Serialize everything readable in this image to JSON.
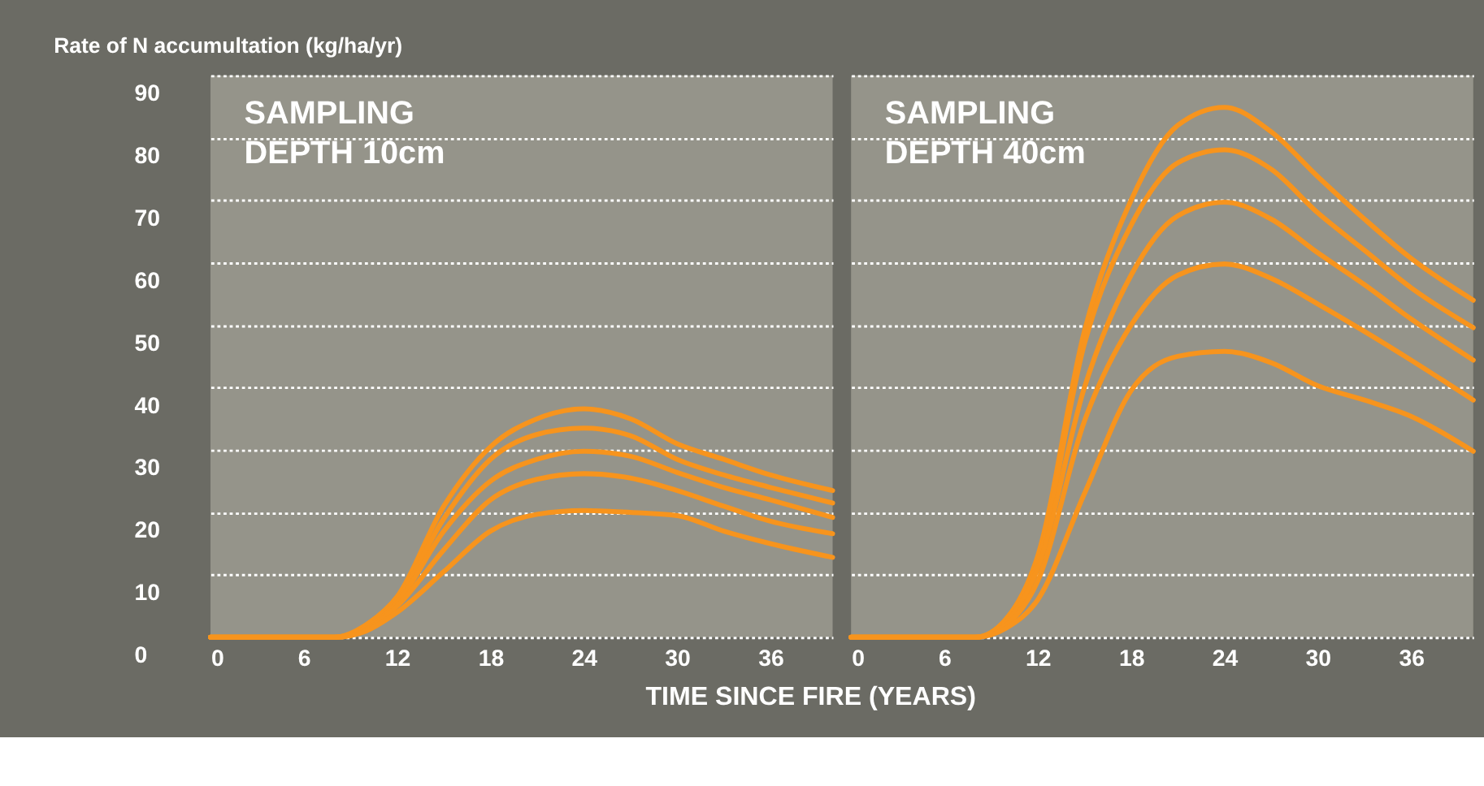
{
  "chart_data": [
    {
      "type": "line",
      "title": "SAMPLING\nDEPTH 10cm",
      "ylabel": "Rate of N accumultation (kg/ha/yr)",
      "x": [
        0,
        8,
        10,
        12,
        15,
        18,
        21,
        24,
        27,
        30,
        33,
        36,
        40
      ],
      "series": [
        {
          "color": "#f7941d",
          "values": [
            0,
            0,
            2,
            6.5,
            21,
            30.5,
            35,
            36.6,
            35,
            31,
            28.5,
            26,
            23.5
          ]
        },
        {
          "color": "#f7941d",
          "values": [
            0,
            0,
            1.8,
            6,
            19,
            28.5,
            32.5,
            33.5,
            32.3,
            28.5,
            26,
            24,
            21.5
          ]
        },
        {
          "color": "#f7941d",
          "values": [
            0,
            0,
            1.5,
            5.5,
            17,
            25,
            28.5,
            29.8,
            29,
            26.4,
            24,
            22,
            19.2
          ]
        },
        {
          "color": "#f7941d",
          "values": [
            0,
            0,
            1.2,
            5,
            14,
            22,
            25.3,
            26.2,
            25.5,
            23.5,
            21,
            18.6,
            16.6
          ]
        },
        {
          "color": "#f7941d",
          "values": [
            0,
            0,
            1,
            4,
            10.5,
            17,
            19.7,
            20.3,
            20,
            19.5,
            17,
            15,
            12.8
          ]
        }
      ],
      "xlim": [
        0,
        40
      ],
      "xticks": [
        0,
        6,
        12,
        18,
        24,
        30,
        36
      ],
      "ylim": [
        0,
        90
      ],
      "yticks": [
        0,
        10,
        20,
        30,
        40,
        50,
        60,
        70,
        80,
        90
      ],
      "grid": "y",
      "legend": false,
      "marker": "none",
      "line_style": "solid"
    },
    {
      "type": "line",
      "title": "SAMPLING\nDEPTH 40cm",
      "xlabel": "TIME SINCE FIRE (YEARS)",
      "x": [
        0,
        8,
        10,
        12,
        15,
        18,
        21,
        24,
        27,
        30,
        33,
        36,
        40
      ],
      "series": [
        {
          "color": "#f7941d",
          "values": [
            0,
            0,
            3,
            13,
            49,
            70,
            82,
            84.9,
            81,
            73.8,
            67,
            60.7,
            54
          ]
        },
        {
          "color": "#f7941d",
          "values": [
            0,
            0,
            3,
            12,
            47,
            66,
            76,
            78.1,
            75,
            68,
            62,
            56,
            49.6
          ]
        },
        {
          "color": "#f7941d",
          "values": [
            0,
            0,
            2.5,
            11,
            40,
            58,
            67.5,
            69.7,
            67,
            61.6,
            56.5,
            51,
            44.4
          ]
        },
        {
          "color": "#f7941d",
          "values": [
            0,
            0,
            2,
            9,
            34.6,
            50,
            58,
            59.8,
            57.5,
            53.4,
            49,
            44.4,
            38
          ]
        },
        {
          "color": "#f7941d",
          "values": [
            0,
            0,
            1.5,
            6,
            23,
            39.5,
            45,
            45.8,
            44,
            40.3,
            38,
            35.4,
            29.8
          ]
        }
      ],
      "xlim": [
        0,
        40
      ],
      "xticks": [
        0,
        6,
        12,
        18,
        24,
        30,
        36
      ],
      "ylim": [
        0,
        90
      ],
      "yticks": [
        0,
        10,
        20,
        30,
        40,
        50,
        60,
        70,
        80,
        90
      ],
      "tick_labels": "x",
      "grid": "y",
      "legend": false,
      "marker": "none",
      "line_style": "solid"
    }
  ]
}
